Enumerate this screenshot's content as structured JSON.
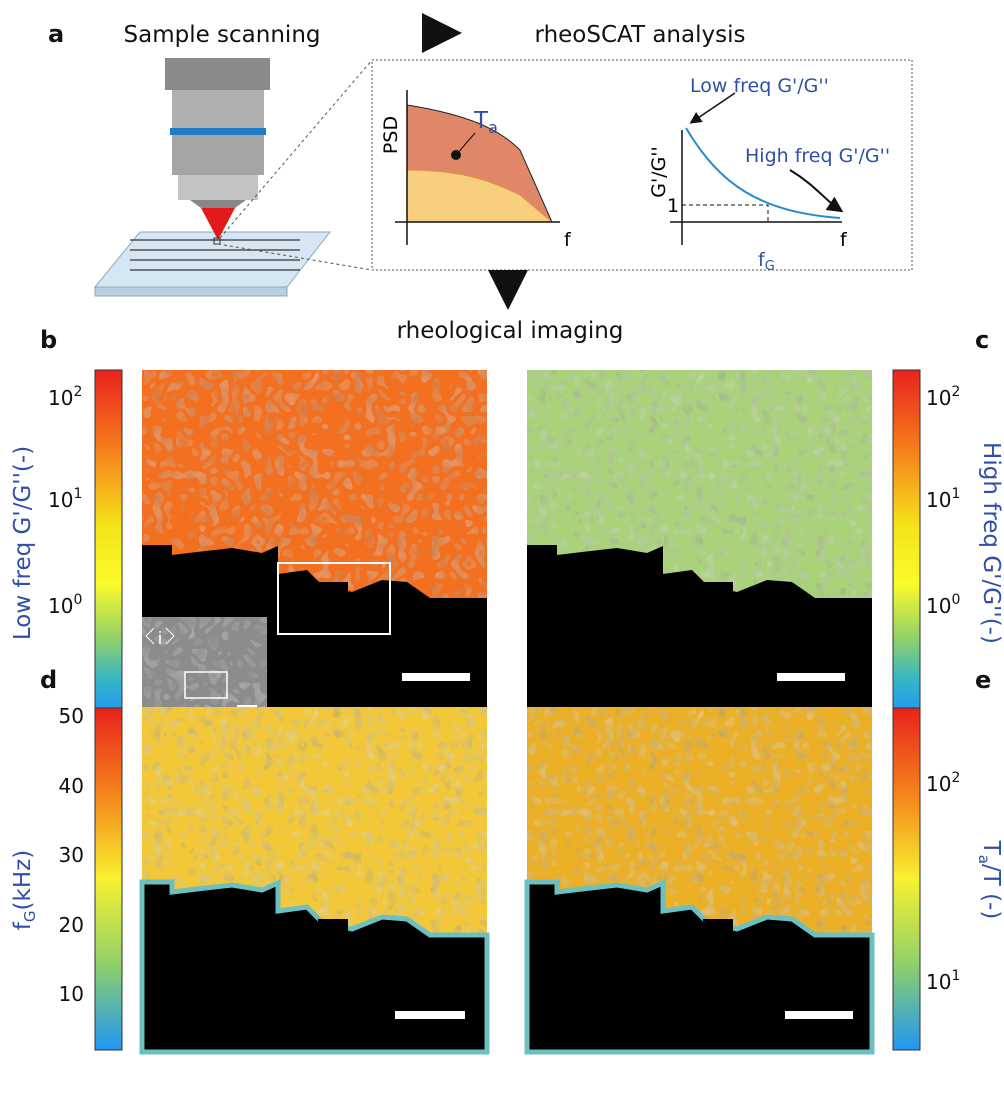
{
  "panel_a": {
    "label": "a",
    "left_title": "Sample scanning",
    "right_title": "rheoSCAT analysis",
    "psd_plot": {
      "y_label": "PSD",
      "x_label": "f",
      "annotation_base": "T",
      "annotation_sub": "a"
    },
    "ratio_plot": {
      "y_label": "G'/G''",
      "x_label": "f",
      "low_label": "Low freq G'/G''",
      "high_label": "High freq G'/G''",
      "level_label": "1",
      "freq_base": "f",
      "freq_sub": "G"
    },
    "bottom_title": "rheological imaging"
  },
  "panel_b": {
    "label": "b",
    "colorbar_label": "Low freq G'/G''(-)",
    "inset_label": "i",
    "ticks": [
      {
        "base": "10",
        "exp": "2"
      },
      {
        "base": "10",
        "exp": "1"
      },
      {
        "base": "10",
        "exp": "0"
      }
    ]
  },
  "panel_c": {
    "label": "c",
    "colorbar_label": "High freq G'/G''(-)",
    "ticks": [
      {
        "base": "10",
        "exp": "2"
      },
      {
        "base": "10",
        "exp": "1"
      },
      {
        "base": "10",
        "exp": "0"
      }
    ]
  },
  "panel_d": {
    "label": "d",
    "colorbar_label_base": "f",
    "colorbar_label_sub": "G",
    "colorbar_label_rest": "(kHz)",
    "ticks": [
      "50",
      "40",
      "30",
      "20",
      "10"
    ]
  },
  "panel_e": {
    "label": "e",
    "colorbar_label_base": "T",
    "colorbar_label_sub": "a",
    "colorbar_label_rest": "/T (-)",
    "ticks": [
      {
        "base": "10",
        "exp": "2"
      },
      {
        "base": "10",
        "exp": "1"
      }
    ]
  }
}
